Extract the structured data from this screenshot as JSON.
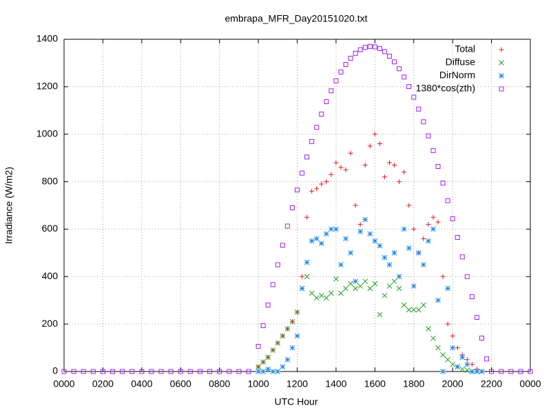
{
  "chart_data": {
    "type": "scatter",
    "title": "embrapa_MFR_Day20151020.txt",
    "xlabel": "UTC Hour",
    "ylabel": "Irradiance (W/m2)",
    "xlim": [
      0,
      24
    ],
    "ylim": [
      0,
      1400
    ],
    "xticks": [
      {
        "value": 0,
        "label": "0000"
      },
      {
        "value": 2,
        "label": "0200"
      },
      {
        "value": 4,
        "label": "0400"
      },
      {
        "value": 6,
        "label": "0600"
      },
      {
        "value": 8,
        "label": "0800"
      },
      {
        "value": 10,
        "label": "1000"
      },
      {
        "value": 12,
        "label": "1200"
      },
      {
        "value": 14,
        "label": "1400"
      },
      {
        "value": 16,
        "label": "1600"
      },
      {
        "value": 18,
        "label": "1800"
      },
      {
        "value": 20,
        "label": "2000"
      },
      {
        "value": 22,
        "label": "2200"
      },
      {
        "value": 24,
        "label": "0000"
      }
    ],
    "yticks": [
      0,
      200,
      400,
      600,
      800,
      1000,
      1200,
      1400
    ],
    "grid": true,
    "legend": "top-right",
    "series": [
      {
        "name": "Total",
        "color": "#e41a1c",
        "marker": "plus",
        "x": [
          10,
          10.25,
          10.5,
          10.75,
          11,
          11.25,
          11.5,
          11.75,
          12,
          12.25,
          12.5,
          12.75,
          13,
          13.25,
          13.5,
          13.75,
          14,
          14.25,
          14.5,
          14.75,
          15,
          15.25,
          15.5,
          15.75,
          16,
          16.25,
          16.5,
          16.75,
          17,
          17.25,
          17.5,
          17.75,
          18,
          18.25,
          18.5,
          18.75,
          19,
          19.25,
          19.5,
          19.75,
          20,
          20.25,
          20.5,
          20.75,
          21,
          21.25,
          21.5
        ],
        "values": [
          20,
          40,
          60,
          90,
          120,
          150,
          180,
          210,
          250,
          400,
          650,
          760,
          770,
          790,
          800,
          830,
          880,
          860,
          850,
          920,
          700,
          620,
          870,
          950,
          1000,
          960,
          820,
          880,
          870,
          800,
          840,
          700,
          600,
          500,
          560,
          620,
          650,
          630,
          400,
          200,
          150,
          100,
          70,
          50,
          30,
          10,
          0
        ]
      },
      {
        "name": "Diffuse",
        "color": "#1ca01c",
        "marker": "cross",
        "x": [
          10,
          10.25,
          10.5,
          10.75,
          11,
          11.25,
          11.5,
          11.75,
          12,
          12.25,
          12.5,
          12.75,
          13,
          13.25,
          13.5,
          13.75,
          14,
          14.25,
          14.5,
          14.75,
          15,
          15.25,
          15.5,
          15.75,
          16,
          16.25,
          16.5,
          16.75,
          17,
          17.25,
          17.5,
          17.75,
          18,
          18.25,
          18.5,
          18.75,
          19,
          19.25,
          19.5,
          19.75,
          20,
          20.25,
          20.5,
          20.75,
          21,
          21.25,
          21.5
        ],
        "values": [
          20,
          40,
          60,
          90,
          120,
          150,
          180,
          210,
          250,
          350,
          400,
          330,
          310,
          320,
          310,
          330,
          390,
          330,
          350,
          370,
          350,
          360,
          380,
          350,
          370,
          240,
          320,
          360,
          380,
          350,
          280,
          260,
          260,
          260,
          280,
          180,
          140,
          100,
          70,
          50,
          30,
          20,
          10,
          5,
          0,
          0,
          0
        ]
      },
      {
        "name": "DirNorm",
        "color": "#1e88e5",
        "marker": "star",
        "x": [
          10,
          10.25,
          10.5,
          10.75,
          11,
          11.25,
          11.5,
          11.75,
          12,
          12.25,
          12.5,
          12.75,
          13,
          13.25,
          13.5,
          13.75,
          14,
          14.25,
          14.5,
          14.75,
          15,
          15.25,
          15.5,
          15.75,
          16,
          16.25,
          16.5,
          16.75,
          17,
          17.25,
          17.5,
          17.75,
          18,
          18.25,
          18.5,
          18.75,
          19,
          19.25,
          19.5,
          19.75,
          20,
          20.25,
          20.5,
          20.75,
          21,
          21.25,
          21.5
        ],
        "values": [
          0,
          0,
          10,
          0,
          0,
          20,
          50,
          100,
          150,
          350,
          460,
          550,
          560,
          540,
          580,
          600,
          600,
          450,
          560,
          500,
          380,
          590,
          640,
          580,
          550,
          530,
          480,
          450,
          500,
          400,
          600,
          520,
          360,
          500,
          450,
          550,
          600,
          300,
          0,
          350,
          100,
          20,
          60,
          30,
          0,
          0,
          0
        ]
      },
      {
        "name": "1380*cos(zth)",
        "color": "#a020f0",
        "marker": "square",
        "x": [
          0,
          0.5,
          1,
          1.5,
          2,
          2.5,
          3,
          3.5,
          4,
          4.5,
          5,
          5.5,
          6,
          6.5,
          7,
          7.5,
          8,
          8.5,
          9,
          9.5,
          10,
          10.25,
          10.5,
          10.75,
          11,
          11.25,
          11.5,
          11.75,
          12,
          12.25,
          12.5,
          12.75,
          13,
          13.25,
          13.5,
          13.75,
          14,
          14.25,
          14.5,
          14.75,
          15,
          15.25,
          15.5,
          15.75,
          16,
          16.25,
          16.5,
          16.75,
          17,
          17.25,
          17.5,
          17.75,
          18,
          18.25,
          18.5,
          18.75,
          19,
          19.25,
          19.5,
          19.75,
          20,
          20.25,
          20.5,
          20.75,
          21,
          21.25,
          21.5,
          21.75,
          22,
          22.5,
          23,
          23.5,
          24
        ],
        "values": [
          0,
          0,
          0,
          0,
          0,
          0,
          0,
          0,
          0,
          0,
          0,
          0,
          0,
          0,
          0,
          0,
          0,
          0,
          0,
          0,
          106,
          193,
          280,
          366,
          450,
          532,
          613,
          690,
          765,
          836,
          904,
          969,
          1029,
          1085,
          1137,
          1183,
          1225,
          1262,
          1294,
          1320,
          1341,
          1356,
          1366,
          1370,
          1368,
          1361,
          1348,
          1329,
          1305,
          1276,
          1241,
          1201,
          1156,
          1106,
          1052,
          993,
          931,
          864,
          794,
          720,
          644,
          565,
          483,
          400,
          315,
          228,
          141,
          53,
          0,
          0,
          0,
          0,
          0
        ]
      }
    ]
  }
}
